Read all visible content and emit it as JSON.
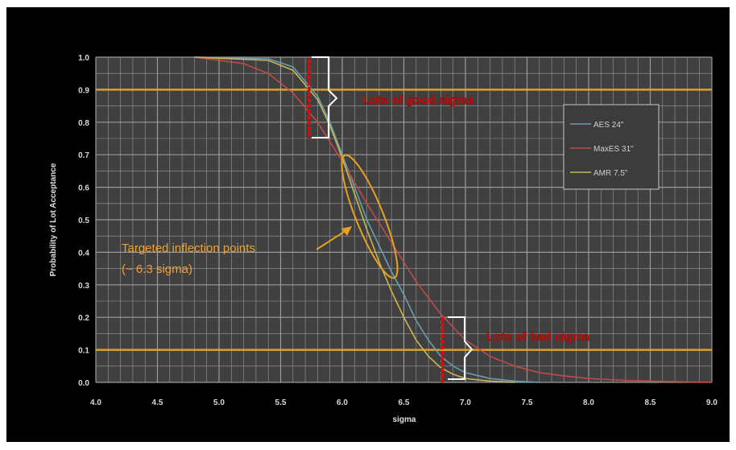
{
  "chart_data": {
    "type": "line",
    "title": "",
    "xlabel": "sigma",
    "ylabel": "Probability of Lot Acceptance",
    "xlim": [
      4.0,
      9.0
    ],
    "ylim": [
      0.0,
      1.0
    ],
    "x_ticks": [
      "4.0",
      "4.5",
      "5.0",
      "5.5",
      "6.0",
      "6.5",
      "7.0",
      "7.5",
      "8.0",
      "8.5",
      "9.0"
    ],
    "y_ticks": [
      "0.0",
      "0.1",
      "0.2",
      "0.3",
      "0.4",
      "0.5",
      "0.6",
      "0.7",
      "0.8",
      "0.9",
      "1.0"
    ],
    "grid": true,
    "legend_position": "right",
    "series": [
      {
        "name": "AES 24\"",
        "color": "#6a9cb4",
        "x": [
          4.8,
          5.4,
          5.6,
          5.8,
          5.9,
          6.0,
          6.1,
          6.2,
          6.3,
          6.4,
          6.5,
          6.6,
          6.7,
          6.8,
          6.9,
          7.0,
          7.2,
          7.4,
          7.6
        ],
        "y": [
          1.0,
          0.995,
          0.97,
          0.88,
          0.8,
          0.7,
          0.6,
          0.5,
          0.42,
          0.34,
          0.27,
          0.19,
          0.13,
          0.08,
          0.05,
          0.03,
          0.012,
          0.004,
          0.0
        ]
      },
      {
        "name": "MaxES 31\"",
        "color": "#c04a4a",
        "x": [
          4.8,
          5.0,
          5.2,
          5.4,
          5.6,
          5.8,
          6.0,
          6.2,
          6.4,
          6.6,
          6.8,
          7.0,
          7.2,
          7.4,
          7.6,
          7.8,
          8.0,
          8.3,
          8.6,
          9.0
        ],
        "y": [
          1.0,
          0.99,
          0.98,
          0.95,
          0.89,
          0.8,
          0.68,
          0.55,
          0.43,
          0.31,
          0.21,
          0.13,
          0.08,
          0.05,
          0.03,
          0.02,
          0.012,
          0.006,
          0.003,
          0.0
        ]
      },
      {
        "name": "AMR 7.5\"",
        "color": "#c8b850",
        "x": [
          4.8,
          5.4,
          5.6,
          5.8,
          5.9,
          6.0,
          6.1,
          6.2,
          6.3,
          6.4,
          6.5,
          6.6,
          6.7,
          6.8,
          6.9,
          7.0,
          7.2,
          7.4
        ],
        "y": [
          1.0,
          0.99,
          0.96,
          0.87,
          0.79,
          0.69,
          0.58,
          0.47,
          0.37,
          0.28,
          0.2,
          0.13,
          0.08,
          0.045,
          0.025,
          0.012,
          0.004,
          0.0
        ]
      }
    ],
    "reference_lines": [
      {
        "axis": "y",
        "value": 0.9,
        "color": "#e0a020"
      },
      {
        "axis": "y",
        "value": 0.1,
        "color": "#e0a020"
      }
    ],
    "annotations": {
      "inflection_line1": "Targeted inflection points",
      "inflection_line2": "(~ 6.3 sigma)",
      "top_bracket_label": "Lots of good sigma",
      "bottom_bracket_label": "Lots of bad sigma"
    }
  }
}
